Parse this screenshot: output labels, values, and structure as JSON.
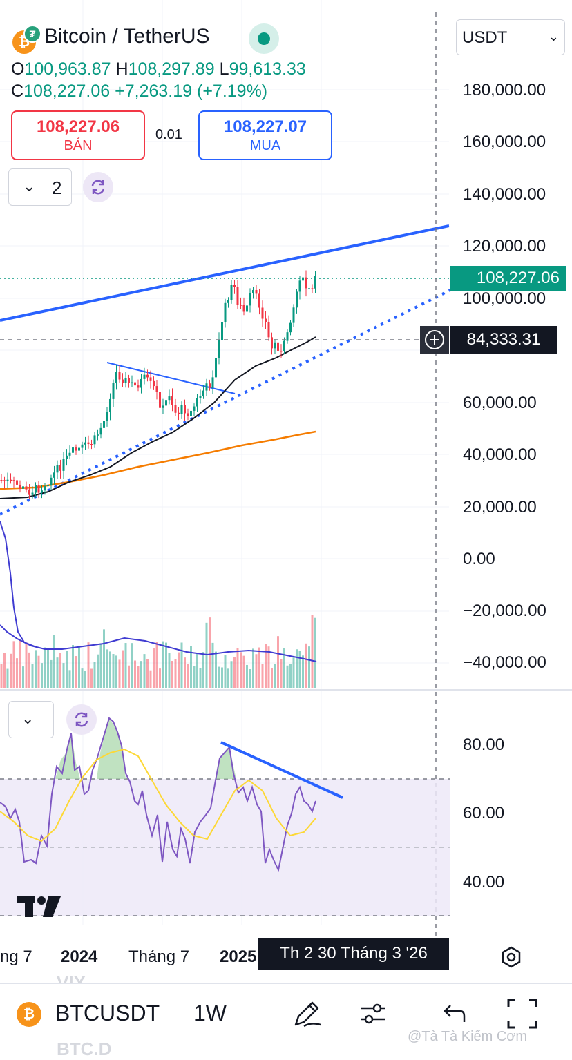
{
  "header": {
    "title": "Bitcoin / TetherUS",
    "status_color": "#089981"
  },
  "ohlc": {
    "o_label": "O",
    "o_value": "100,963.87",
    "h_label": "H",
    "h_value": "108,297.89",
    "l_label": "L",
    "l_value": "99,613.33",
    "c_label": "C",
    "c_value": "108,227.06",
    "change": "+7,263.19 (+7.19%)"
  },
  "trade": {
    "sell_price": "108,227.06",
    "sell_label": "BÁN",
    "spread": "0.01",
    "buy_price": "108,227.07",
    "buy_label": "MUA"
  },
  "currency_select": {
    "value": "USDT"
  },
  "indicators": {
    "count": "2"
  },
  "price_axis": [
    "180,000.00",
    "160,000.00",
    "140,000.00",
    "120,000.00",
    "100,000.00",
    "60,000.00",
    "40,000.00",
    "20,000.00",
    "0.00",
    "−20,000.00",
    "−40,000.00"
  ],
  "rsi_axis": [
    "80.00",
    "60.00",
    "40.00"
  ],
  "last_price_tag": "108,227.06",
  "crosshair_price": "84,333.31",
  "x_axis": [
    "ng 7",
    "2024",
    "Tháng 7",
    "2025"
  ],
  "crosshair_time": "Th 2 30 Tháng 3 '26",
  "bottom": {
    "symbol": "BTCUSDT",
    "interval": "1W",
    "ghost_top": "VIX",
    "ghost_bottom": "BTC.D"
  },
  "watermark": "@Tà Tà Kiếm Cơm",
  "colors": {
    "up": "#089981",
    "down": "#f23645",
    "trend": "#2962ff",
    "ema50": "#131722",
    "ema200": "#f57c00",
    "rsi": "#7e57c2",
    "rsi_ma": "#fdd835"
  }
}
